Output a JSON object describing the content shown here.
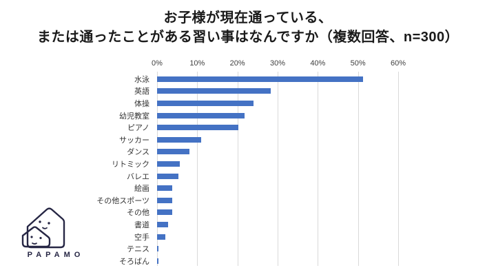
{
  "title": {
    "line1": "お子様が現在通っている、",
    "line2": "または通ったことがある習い事はなんですか（複数回答、n=300）"
  },
  "logo": {
    "text": "PAPAMO"
  },
  "colors": {
    "bar": "#4472C4",
    "gridline": "#D9D9D9",
    "logo": "#262644",
    "title_text": "#1a1a1a",
    "axis_text": "#404040"
  },
  "chart_data": {
    "type": "bar",
    "orientation": "horizontal",
    "title": "お子様が現在通っている、または通ったことがある習い事はなんですか（複数回答、n=300）",
    "n": 300,
    "categories": [
      "水泳",
      "英語",
      "体操",
      "幼児教室",
      "ピアノ",
      "サッカー",
      "ダンス",
      "リトミック",
      "バレエ",
      "絵画",
      "その他スポーツ",
      "その他",
      "書道",
      "空手",
      "テニス",
      "そろばん"
    ],
    "values": [
      51.3,
      28.3,
      24.0,
      21.7,
      20.3,
      11.0,
      8.0,
      5.7,
      5.3,
      3.7,
      3.7,
      3.7,
      2.7,
      2.0,
      0.3,
      0.3
    ],
    "unit": "%",
    "xlim": [
      0,
      60
    ],
    "x_ticks": [
      "0%",
      "10%",
      "20%",
      "30%",
      "40%",
      "50%",
      "60%"
    ],
    "grid": true,
    "legend": "none",
    "data_labels": "none"
  }
}
